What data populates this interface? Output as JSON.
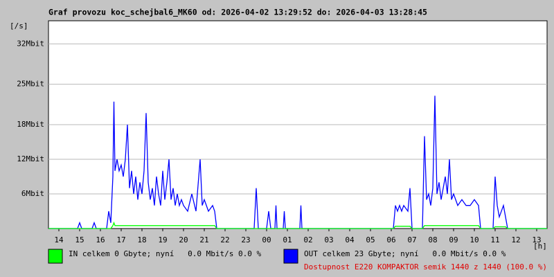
{
  "chart_data": {
    "type": "line",
    "title": "Graf provozu koc_schejbal6_MK60 od: 2026-04-02 13:29:52 do: 2026-04-03 13:28:45",
    "y_unit": "[/s]",
    "x_unit": "[h]",
    "annotation": "Dostupnost E220 KOMPAKTOR semik 1440 z 1440 (100.0 %)",
    "annotation_color": "#e00000",
    "grid": true,
    "xlim": [
      13.5,
      37.5
    ],
    "xticks": [
      14,
      15,
      16,
      17,
      18,
      19,
      20,
      21,
      22,
      23,
      {
        "value": 24,
        "label": "00"
      },
      {
        "value": 25,
        "label": "01"
      },
      {
        "value": 26,
        "label": "02"
      },
      {
        "value": 27,
        "label": "03"
      },
      {
        "value": 28,
        "label": "04"
      },
      {
        "value": 29,
        "label": "05"
      },
      {
        "value": 30,
        "label": "06"
      },
      {
        "value": 31,
        "label": "07"
      },
      {
        "value": 32,
        "label": "08"
      },
      {
        "value": 33,
        "label": "09"
      },
      {
        "value": 34,
        "label": "10"
      },
      {
        "value": 35,
        "label": "11"
      },
      {
        "value": 36,
        "label": "12"
      },
      {
        "value": 37,
        "label": "13"
      }
    ],
    "ylim": [
      0,
      36
    ],
    "yticks": [
      {
        "value": 6,
        "label": "6Mbit"
      },
      {
        "value": 12,
        "label": "12Mbit"
      },
      {
        "value": 18,
        "label": "18Mbit"
      },
      {
        "value": 25,
        "label": "25Mbit"
      },
      {
        "value": 32,
        "label": "32Mbit"
      }
    ],
    "x": [
      13.5,
      14.9,
      15.0,
      15.1,
      15.6,
      15.7,
      15.8,
      16.3,
      16.4,
      16.5,
      16.6,
      16.65,
      16.7,
      16.8,
      16.9,
      17.0,
      17.1,
      17.2,
      17.3,
      17.4,
      17.5,
      17.6,
      17.7,
      17.8,
      17.9,
      18.0,
      18.1,
      18.2,
      18.3,
      18.4,
      18.5,
      18.6,
      18.7,
      18.8,
      18.9,
      19.0,
      19.1,
      19.2,
      19.3,
      19.4,
      19.5,
      19.6,
      19.7,
      19.8,
      19.9,
      20.0,
      20.2,
      20.4,
      20.6,
      20.8,
      20.9,
      21.0,
      21.2,
      21.4,
      21.5,
      21.6,
      23.4,
      23.5,
      23.6,
      24.0,
      24.1,
      24.2,
      24.4,
      24.45,
      24.5,
      24.8,
      24.85,
      24.9,
      25.6,
      25.65,
      25.7,
      30.1,
      30.2,
      30.3,
      30.4,
      30.5,
      30.6,
      30.8,
      30.9,
      31.0,
      31.5,
      31.6,
      31.7,
      31.8,
      31.9,
      32.0,
      32.1,
      32.2,
      32.3,
      32.4,
      32.5,
      32.6,
      32.7,
      32.8,
      32.9,
      33.0,
      33.2,
      33.4,
      33.6,
      33.8,
      34.0,
      34.2,
      34.3,
      34.9,
      35.0,
      35.1,
      35.2,
      35.4,
      35.5,
      35.6,
      37.5
    ],
    "series": [
      {
        "name": "OUT celkem 23 Gbyte; nyní   0.0 Mbit/s 0.0 %",
        "color": "#0000ff",
        "values": [
          0,
          0,
          1,
          0,
          0,
          1,
          0,
          0,
          3,
          1,
          9,
          22,
          10,
          12,
          10,
          11,
          9,
          12,
          18,
          7,
          10,
          6,
          9,
          5,
          8,
          6,
          10,
          20,
          8,
          5,
          7,
          4,
          9,
          6,
          4,
          10,
          5,
          8,
          12,
          5,
          7,
          4,
          6,
          4,
          5,
          4,
          3,
          6,
          3,
          12,
          4,
          5,
          3,
          4,
          3,
          0,
          0,
          7,
          0,
          0,
          3,
          0,
          0,
          4,
          0,
          0,
          3,
          0,
          0,
          4,
          0,
          0,
          4,
          3,
          4,
          3,
          4,
          3,
          7,
          0,
          0,
          16,
          5,
          6,
          4,
          7,
          23,
          6,
          8,
          5,
          7,
          9,
          6,
          12,
          5,
          6,
          4,
          5,
          4,
          4,
          5,
          4,
          0,
          0,
          9,
          4,
          2,
          4,
          2,
          0,
          0
        ]
      },
      {
        "name": "IN celkem 0 Gbyte; nyní   0.0 Mbit/s 0.0 %",
        "color": "#00ff00",
        "values": [
          0,
          0,
          0,
          0,
          0,
          0,
          0,
          0,
          0,
          0,
          0.5,
          1,
          0.5,
          0.5,
          0.5,
          0.5,
          0.5,
          0.5,
          0.5,
          0.5,
          0.5,
          0.5,
          0.5,
          0.5,
          0.5,
          0.5,
          0.5,
          0.5,
          0.5,
          0.5,
          0.5,
          0.5,
          0.5,
          0.5,
          0.5,
          0.5,
          0.5,
          0.5,
          0.5,
          0.5,
          0.5,
          0.5,
          0.5,
          0.5,
          0.5,
          0.5,
          0.5,
          0.5,
          0.5,
          0.5,
          0.5,
          0.5,
          0.5,
          0.5,
          0.5,
          0,
          0,
          0,
          0,
          0,
          0,
          0,
          0,
          0,
          0,
          0,
          0,
          0,
          0,
          0,
          0,
          0,
          0.4,
          0.4,
          0.4,
          0.4,
          0.4,
          0.4,
          0.4,
          0,
          0,
          0.5,
          0.5,
          0.5,
          0.5,
          0.5,
          0.5,
          0.5,
          0.5,
          0.5,
          0.5,
          0.5,
          0.5,
          0.5,
          0.5,
          0.5,
          0.5,
          0.5,
          0.5,
          0.5,
          0.5,
          0.5,
          0,
          0,
          0.3,
          0.3,
          0.3,
          0.3,
          0.3,
          0,
          0
        ]
      }
    ]
  }
}
